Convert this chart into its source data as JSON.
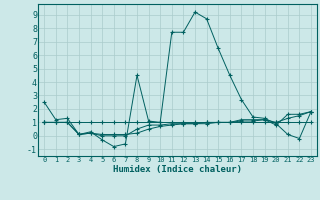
{
  "xlabel": "Humidex (Indice chaleur)",
  "background_color": "#cce8e8",
  "grid_color": "#aacccc",
  "line_color": "#006060",
  "xlim": [
    -0.5,
    23.5
  ],
  "ylim": [
    -1.5,
    9.8
  ],
  "xticks": [
    0,
    1,
    2,
    3,
    4,
    5,
    6,
    7,
    8,
    9,
    10,
    11,
    12,
    13,
    14,
    15,
    16,
    17,
    18,
    19,
    20,
    21,
    22,
    23
  ],
  "yticks": [
    -1,
    0,
    1,
    2,
    3,
    4,
    5,
    6,
    7,
    8,
    9
  ],
  "series": [
    [
      2.5,
      1.2,
      1.3,
      0.1,
      0.3,
      -0.3,
      -0.8,
      -0.6,
      4.5,
      1.1,
      1.0,
      7.7,
      7.7,
      9.2,
      8.7,
      6.5,
      4.5,
      2.7,
      1.4,
      1.3,
      0.9,
      0.1,
      -0.2,
      1.8
    ],
    [
      1.0,
      1.0,
      1.0,
      1.0,
      1.0,
      1.0,
      1.0,
      1.0,
      1.0,
      1.0,
      1.0,
      1.0,
      1.0,
      1.0,
      1.0,
      1.0,
      1.0,
      1.0,
      1.0,
      1.0,
      1.0,
      1.0,
      1.0,
      1.0
    ],
    [
      1.0,
      1.0,
      1.0,
      0.1,
      0.2,
      0.0,
      0.0,
      0.0,
      0.5,
      0.8,
      0.8,
      0.9,
      0.9,
      0.9,
      1.0,
      1.0,
      1.0,
      1.2,
      1.2,
      1.2,
      0.8,
      1.6,
      1.6,
      1.8
    ],
    [
      1.0,
      1.0,
      1.0,
      0.1,
      0.2,
      0.1,
      0.1,
      0.1,
      0.2,
      0.5,
      0.7,
      0.8,
      0.9,
      0.9,
      0.9,
      1.0,
      1.0,
      1.1,
      1.1,
      1.2,
      1.0,
      1.3,
      1.5,
      1.8
    ]
  ]
}
